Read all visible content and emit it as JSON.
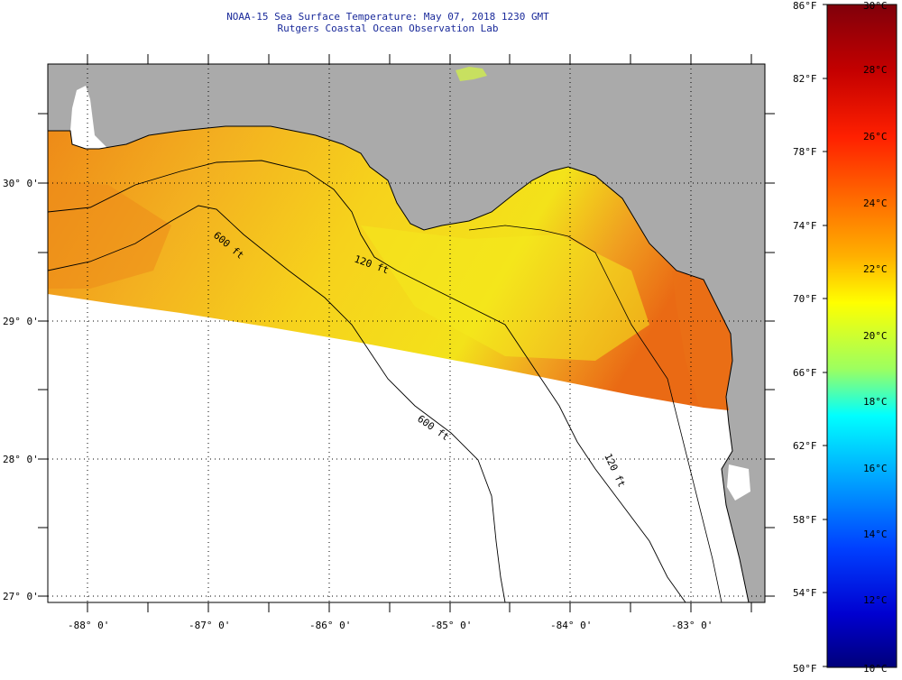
{
  "header": {
    "line1": "NOAA-15 Sea Surface Temperature:  May 07, 2018 1230 GMT",
    "line2": "Rutgers Coastal Ocean Observation Lab"
  },
  "map": {
    "region": "Florida Big Bend / Northeastern Gulf of Mexico",
    "lat_labels": [
      "30° 0'",
      "29° 0'",
      "28° 0'",
      "27° 0'"
    ],
    "lon_labels": [
      "-88° 0'",
      "-87° 0'",
      "-86° 0'",
      "-85° 0'",
      "-84° 0'",
      "-83° 0'"
    ],
    "isobath_labels": [
      "120 ft",
      "600 ft",
      "600 ft",
      "120 ft"
    ],
    "colors": {
      "land": "#aaaaaa",
      "no_data": "#ffffff",
      "grid": "#000000",
      "sst_warm": "#f0a020",
      "sst_mid": "#f5c818",
      "sst_cool": "#f2e41a",
      "sst_hot": "#ee7a16"
    }
  },
  "colorbar": {
    "fahrenheit_labels": [
      "86°F",
      "82°F",
      "78°F",
      "74°F",
      "70°F",
      "66°F",
      "62°F",
      "58°F",
      "54°F",
      "50°F"
    ],
    "celsius_labels": [
      "30°C",
      "28°C",
      "26°C",
      "24°C",
      "22°C",
      "20°C",
      "18°C",
      "16°C",
      "14°C",
      "12°C",
      "10°C"
    ],
    "gradient_colors": [
      "#80000a",
      "#c40000",
      "#ff1a00",
      "#ff6a00",
      "#ffb400",
      "#ffff00",
      "#9cff60",
      "#00ffff",
      "#00a0ff",
      "#0040ff",
      "#0000c8",
      "#00007a"
    ]
  }
}
